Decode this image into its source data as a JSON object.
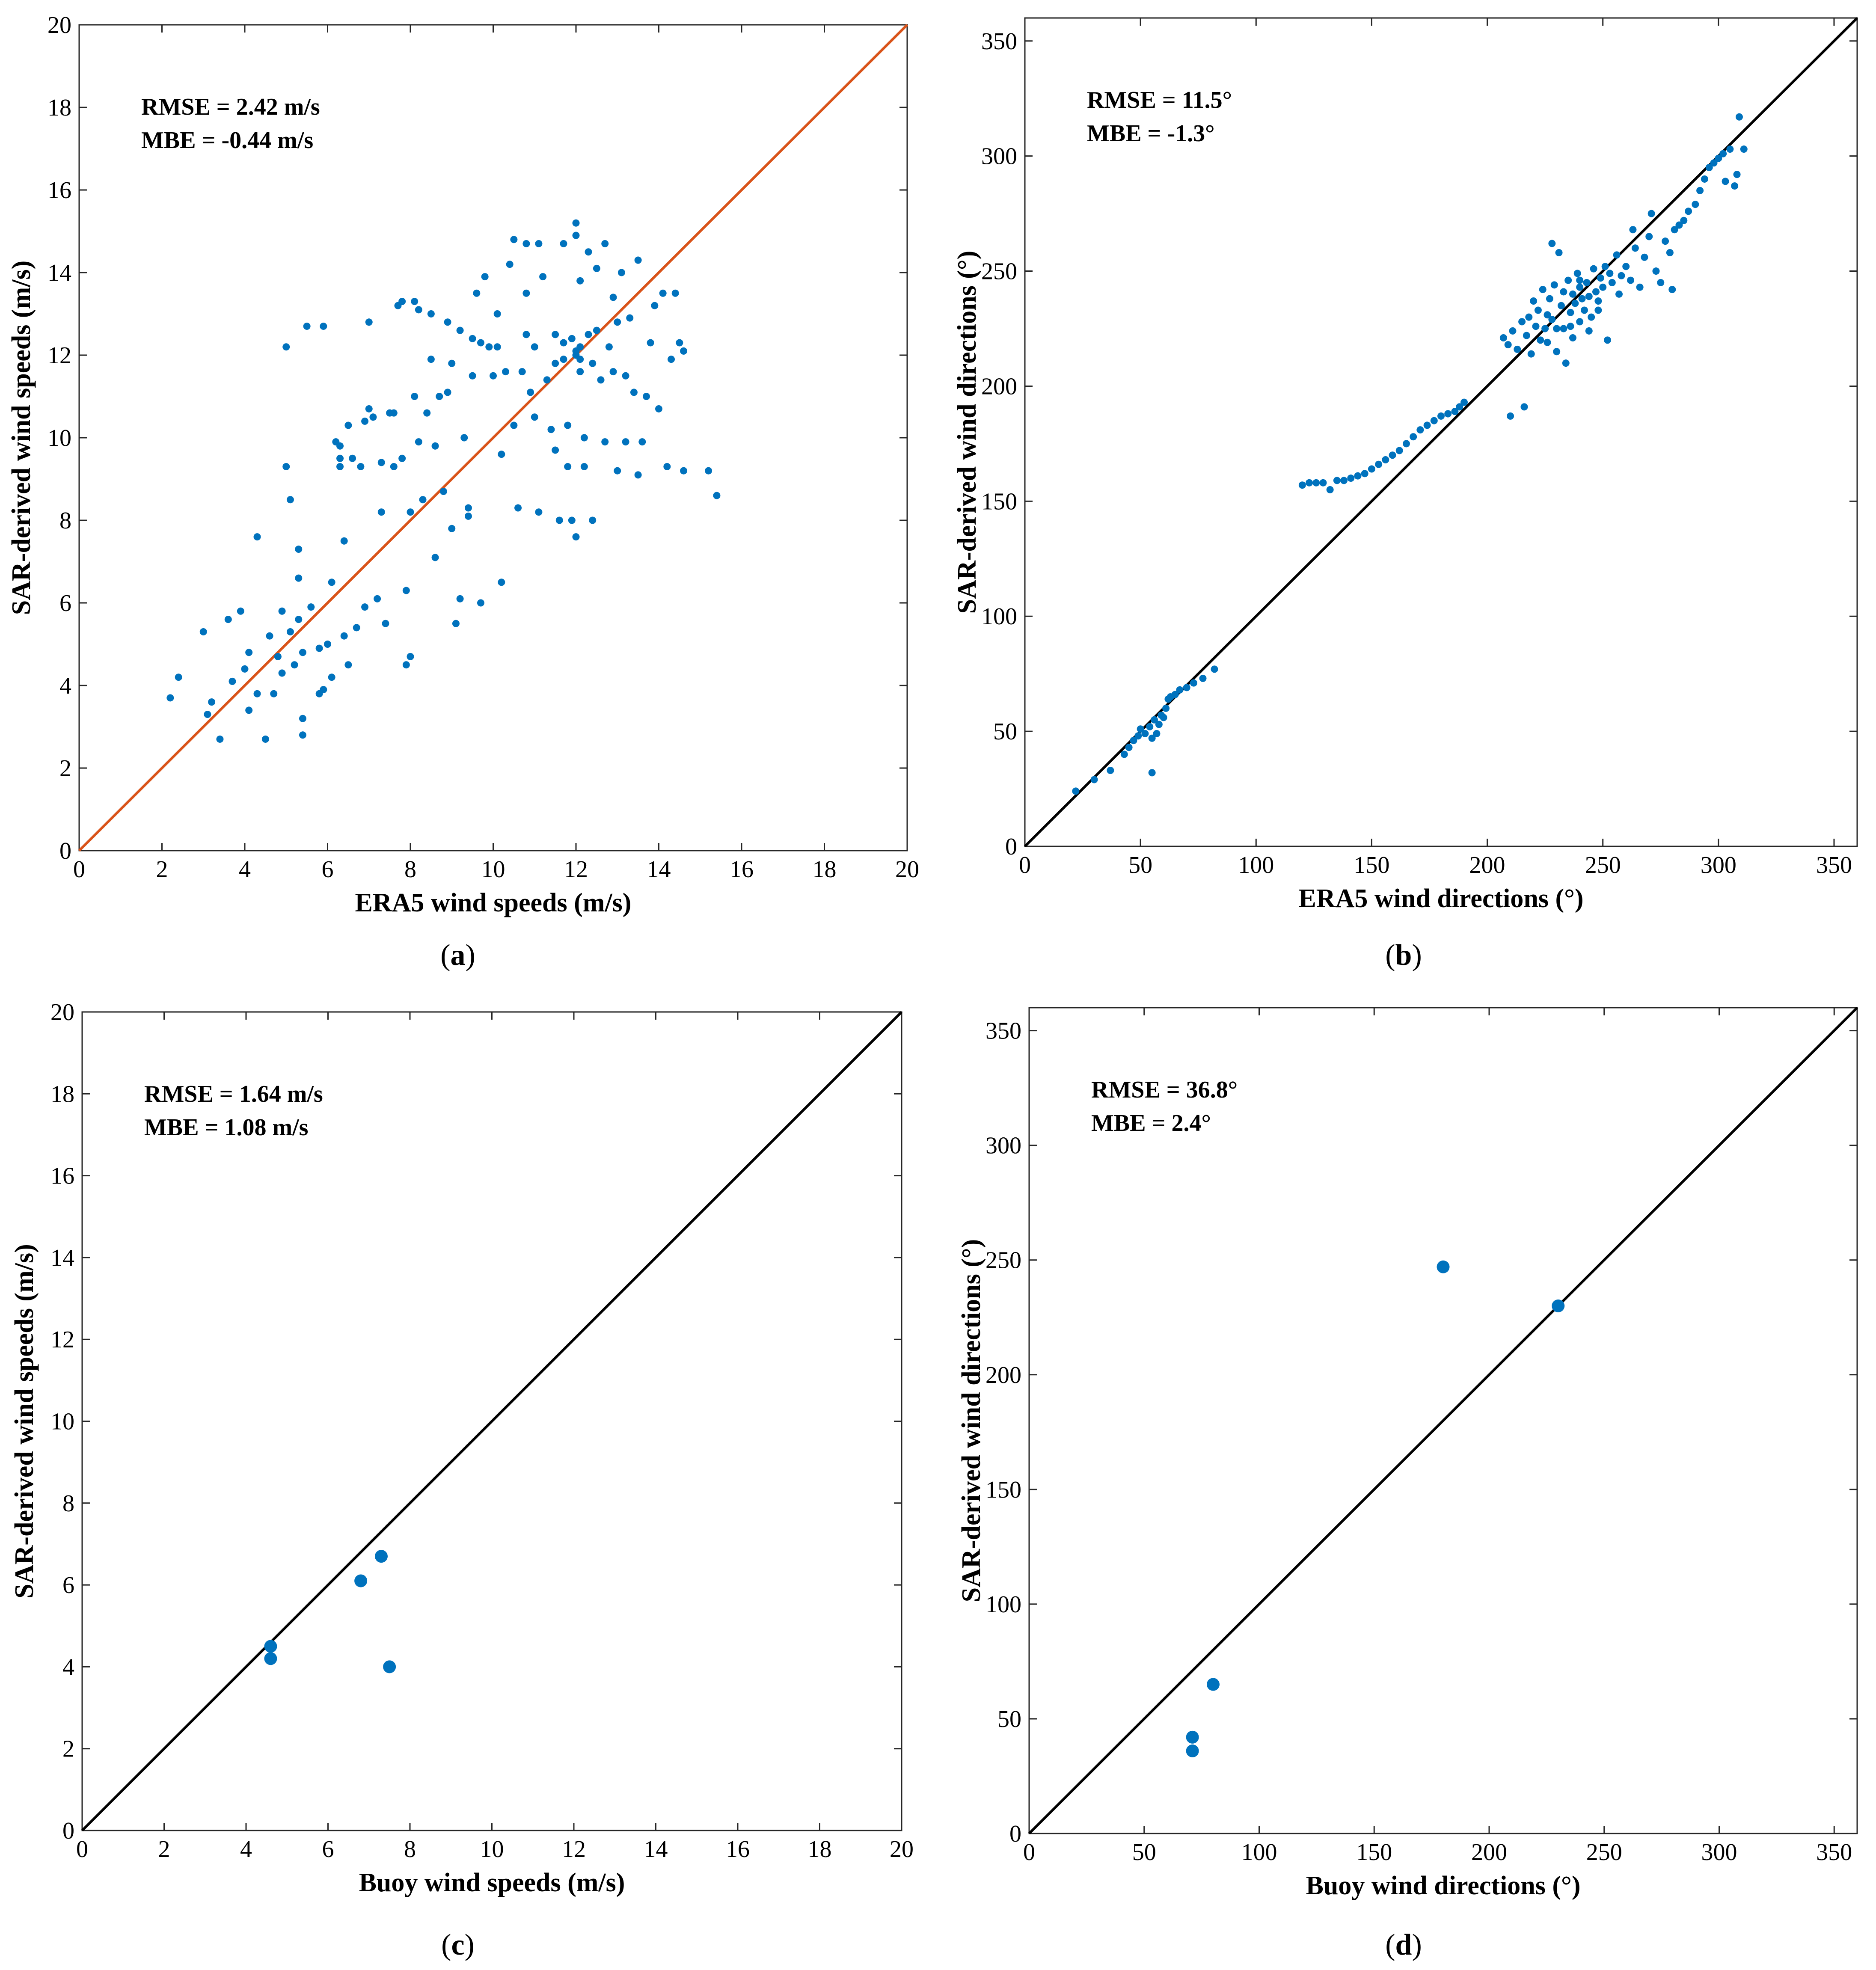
{
  "colors": {
    "marker": "#0072BD",
    "orange_line": "#D95319",
    "black_line": "#000000"
  },
  "chart_data": [
    {
      "id": "a",
      "type": "scatter",
      "caption_letter": "a",
      "caption_text": "(a)",
      "xlabel": "ERA5 wind speeds (m/s)",
      "ylabel": "SAR-derived wind speeds (m/s)",
      "xlim": [
        0,
        20
      ],
      "ylim": [
        0,
        20
      ],
      "xticks": [
        0,
        2,
        4,
        6,
        8,
        10,
        12,
        14,
        16,
        18,
        20
      ],
      "yticks": [
        0,
        2,
        4,
        6,
        8,
        10,
        12,
        14,
        16,
        18,
        20
      ],
      "stats": [
        "RMSE = 2.42 m/s",
        "MBE = -0.44 m/s"
      ],
      "reference_line": {
        "label": "1:1",
        "color_key": "orange_line"
      },
      "marker_size": "small",
      "points": [
        [
          2.2,
          3.7
        ],
        [
          2.4,
          4.2
        ],
        [
          3.0,
          5.3
        ],
        [
          3.2,
          3.6
        ],
        [
          3.1,
          3.3
        ],
        [
          3.4,
          2.7
        ],
        [
          3.6,
          5.6
        ],
        [
          3.9,
          5.8
        ],
        [
          3.7,
          4.1
        ],
        [
          4.0,
          4.4
        ],
        [
          4.1,
          4.8
        ],
        [
          4.1,
          3.4
        ],
        [
          4.3,
          3.8
        ],
        [
          4.3,
          7.6
        ],
        [
          4.5,
          2.7
        ],
        [
          4.6,
          5.2
        ],
        [
          4.7,
          3.8
        ],
        [
          4.8,
          4.7
        ],
        [
          4.9,
          5.8
        ],
        [
          4.9,
          4.3
        ],
        [
          5.0,
          9.3
        ],
        [
          5.1,
          8.5
        ],
        [
          5.0,
          12.2
        ],
        [
          5.1,
          5.3
        ],
        [
          5.2,
          4.5
        ],
        [
          5.3,
          6.6
        ],
        [
          5.3,
          7.3
        ],
        [
          5.3,
          5.6
        ],
        [
          5.4,
          4.8
        ],
        [
          5.4,
          3.2
        ],
        [
          5.4,
          2.8
        ],
        [
          5.5,
          12.7
        ],
        [
          5.6,
          5.9
        ],
        [
          5.8,
          4.9
        ],
        [
          5.8,
          3.8
        ],
        [
          5.9,
          12.7
        ],
        [
          5.9,
          3.9
        ],
        [
          6.0,
          5.0
        ],
        [
          6.1,
          6.5
        ],
        [
          6.1,
          4.2
        ],
        [
          6.2,
          9.9
        ],
        [
          6.3,
          9.8
        ],
        [
          6.3,
          9.5
        ],
        [
          6.3,
          9.3
        ],
        [
          6.4,
          7.5
        ],
        [
          6.4,
          5.2
        ],
        [
          6.5,
          4.5
        ],
        [
          6.5,
          10.3
        ],
        [
          6.6,
          9.5
        ],
        [
          6.7,
          5.4
        ],
        [
          6.8,
          9.3
        ],
        [
          6.9,
          5.9
        ],
        [
          6.9,
          10.4
        ],
        [
          7.0,
          10.7
        ],
        [
          7.0,
          12.8
        ],
        [
          7.1,
          10.5
        ],
        [
          7.2,
          6.1
        ],
        [
          7.3,
          9.4
        ],
        [
          7.3,
          8.2
        ],
        [
          7.4,
          5.5
        ],
        [
          7.5,
          10.6
        ],
        [
          7.6,
          9.3
        ],
        [
          7.6,
          10.6
        ],
        [
          7.7,
          13.2
        ],
        [
          7.8,
          13.3
        ],
        [
          7.8,
          9.5
        ],
        [
          7.9,
          4.5
        ],
        [
          7.9,
          6.3
        ],
        [
          8.0,
          8.2
        ],
        [
          8.0,
          4.7
        ],
        [
          8.1,
          13.3
        ],
        [
          8.1,
          11.0
        ],
        [
          8.2,
          13.1
        ],
        [
          8.2,
          9.9
        ],
        [
          8.3,
          8.5
        ],
        [
          8.4,
          10.6
        ],
        [
          8.5,
          13.0
        ],
        [
          8.5,
          11.9
        ],
        [
          8.6,
          9.8
        ],
        [
          8.6,
          7.1
        ],
        [
          8.7,
          11.0
        ],
        [
          8.8,
          8.7
        ],
        [
          8.9,
          12.8
        ],
        [
          8.9,
          11.1
        ],
        [
          9.0,
          11.8
        ],
        [
          9.0,
          7.8
        ],
        [
          9.1,
          5.5
        ],
        [
          9.2,
          12.6
        ],
        [
          9.2,
          6.1
        ],
        [
          9.3,
          10.0
        ],
        [
          9.4,
          8.3
        ],
        [
          9.4,
          8.1
        ],
        [
          9.5,
          12.4
        ],
        [
          9.5,
          11.5
        ],
        [
          9.6,
          13.5
        ],
        [
          9.7,
          12.3
        ],
        [
          9.7,
          6.0
        ],
        [
          9.8,
          13.9
        ],
        [
          9.9,
          12.2
        ],
        [
          10.0,
          11.5
        ],
        [
          10.1,
          13.0
        ],
        [
          10.1,
          12.2
        ],
        [
          10.2,
          9.6
        ],
        [
          10.2,
          6.5
        ],
        [
          10.3,
          11.6
        ],
        [
          10.4,
          14.2
        ],
        [
          10.5,
          14.8
        ],
        [
          10.5,
          10.3
        ],
        [
          10.6,
          8.3
        ],
        [
          10.7,
          11.6
        ],
        [
          10.8,
          14.7
        ],
        [
          10.8,
          13.5
        ],
        [
          10.8,
          12.5
        ],
        [
          10.9,
          11.1
        ],
        [
          11.0,
          12.2
        ],
        [
          11.0,
          10.5
        ],
        [
          11.1,
          14.7
        ],
        [
          11.1,
          8.2
        ],
        [
          11.2,
          13.9
        ],
        [
          11.3,
          11.4
        ],
        [
          11.4,
          10.2
        ],
        [
          11.5,
          12.5
        ],
        [
          11.5,
          9.7
        ],
        [
          11.6,
          8.0
        ],
        [
          11.7,
          14.7
        ],
        [
          11.7,
          12.3
        ],
        [
          11.7,
          11.9
        ],
        [
          11.8,
          10.3
        ],
        [
          11.8,
          9.3
        ],
        [
          11.9,
          8.0
        ],
        [
          12.0,
          15.2
        ],
        [
          12.0,
          14.9
        ],
        [
          12.0,
          12.0
        ],
        [
          12.0,
          7.6
        ],
        [
          12.1,
          13.8
        ],
        [
          12.1,
          12.2
        ],
        [
          12.1,
          11.6
        ],
        [
          12.2,
          10.0
        ],
        [
          12.2,
          9.3
        ],
        [
          12.3,
          14.5
        ],
        [
          12.3,
          12.5
        ],
        [
          12.4,
          11.8
        ],
        [
          12.4,
          8.0
        ],
        [
          12.5,
          14.1
        ],
        [
          12.5,
          12.6
        ],
        [
          12.6,
          11.4
        ],
        [
          12.7,
          14.7
        ],
        [
          12.7,
          9.9
        ],
        [
          12.8,
          12.2
        ],
        [
          12.9,
          13.4
        ],
        [
          12.9,
          11.6
        ],
        [
          13.0,
          12.8
        ],
        [
          13.0,
          9.2
        ],
        [
          13.1,
          14.0
        ],
        [
          13.2,
          11.5
        ],
        [
          13.2,
          9.9
        ],
        [
          13.3,
          12.9
        ],
        [
          13.4,
          11.1
        ],
        [
          13.5,
          14.3
        ],
        [
          13.5,
          9.1
        ],
        [
          13.6,
          9.9
        ],
        [
          13.7,
          11.0
        ],
        [
          13.8,
          12.3
        ],
        [
          13.9,
          13.2
        ],
        [
          14.0,
          10.7
        ],
        [
          14.1,
          13.5
        ],
        [
          14.2,
          9.3
        ],
        [
          14.3,
          11.9
        ],
        [
          14.4,
          13.5
        ],
        [
          14.5,
          12.3
        ],
        [
          14.6,
          12.1
        ],
        [
          14.6,
          9.2
        ],
        [
          15.2,
          9.2
        ],
        [
          15.4,
          8.6
        ],
        [
          12.0,
          12.1
        ],
        [
          11.5,
          11.8
        ],
        [
          11.9,
          12.4
        ],
        [
          12.1,
          11.9
        ]
      ]
    },
    {
      "id": "b",
      "type": "scatter",
      "caption_letter": "b",
      "caption_text": "(b)",
      "xlabel": "ERA5 wind directions (°)",
      "ylabel": "SAR-derived wind directions (°)",
      "xlim": [
        0,
        360
      ],
      "ylim": [
        0,
        360
      ],
      "xticks": [
        0,
        50,
        100,
        150,
        200,
        250,
        300,
        350
      ],
      "yticks": [
        0,
        50,
        100,
        150,
        200,
        250,
        300,
        350
      ],
      "stats": [
        "RMSE = 11.5°",
        "MBE = -1.3°"
      ],
      "reference_line": {
        "label": "1:1",
        "color_key": "black_line"
      },
      "marker_size": "small",
      "points": [
        [
          22,
          24
        ],
        [
          30,
          29
        ],
        [
          37,
          33
        ],
        [
          43,
          40
        ],
        [
          45,
          43
        ],
        [
          47,
          46
        ],
        [
          49,
          48
        ],
        [
          50,
          51
        ],
        [
          52,
          49
        ],
        [
          54,
          52
        ],
        [
          55,
          47
        ],
        [
          55,
          32
        ],
        [
          56,
          55
        ],
        [
          57,
          49
        ],
        [
          58,
          53
        ],
        [
          59,
          57
        ],
        [
          60,
          56
        ],
        [
          61,
          60
        ],
        [
          62,
          64
        ],
        [
          63,
          65
        ],
        [
          65,
          66
        ],
        [
          67,
          68
        ],
        [
          70,
          69
        ],
        [
          73,
          71
        ],
        [
          77,
          73
        ],
        [
          82,
          77
        ],
        [
          120,
          157
        ],
        [
          123,
          158
        ],
        [
          126,
          158
        ],
        [
          129,
          158
        ],
        [
          132,
          155
        ],
        [
          135,
          159
        ],
        [
          138,
          159
        ],
        [
          141,
          160
        ],
        [
          144,
          161
        ],
        [
          147,
          162
        ],
        [
          150,
          164
        ],
        [
          153,
          166
        ],
        [
          156,
          168
        ],
        [
          159,
          170
        ],
        [
          162,
          172
        ],
        [
          165,
          175
        ],
        [
          168,
          178
        ],
        [
          171,
          181
        ],
        [
          174,
          183
        ],
        [
          177,
          185
        ],
        [
          180,
          187
        ],
        [
          183,
          188
        ],
        [
          186,
          189
        ],
        [
          188,
          191
        ],
        [
          190,
          193
        ],
        [
          210,
          187
        ],
        [
          216,
          191
        ],
        [
          207,
          221
        ],
        [
          209,
          218
        ],
        [
          211,
          224
        ],
        [
          213,
          216
        ],
        [
          215,
          228
        ],
        [
          217,
          222
        ],
        [
          218,
          230
        ],
        [
          219,
          214
        ],
        [
          220,
          237
        ],
        [
          221,
          226
        ],
        [
          222,
          233
        ],
        [
          223,
          220
        ],
        [
          224,
          242
        ],
        [
          225,
          225
        ],
        [
          226,
          219
        ],
        [
          227,
          238
        ],
        [
          228,
          262
        ],
        [
          228,
          229
        ],
        [
          229,
          244
        ],
        [
          230,
          215
        ],
        [
          231,
          258
        ],
        [
          232,
          235
        ],
        [
          233,
          241
        ],
        [
          233,
          225
        ],
        [
          234,
          210
        ],
        [
          235,
          246
        ],
        [
          236,
          232
        ],
        [
          237,
          240
        ],
        [
          237,
          221
        ],
        [
          238,
          236
        ],
        [
          239,
          249
        ],
        [
          240,
          243
        ],
        [
          240,
          228
        ],
        [
          241,
          238
        ],
        [
          242,
          233
        ],
        [
          243,
          245
        ],
        [
          244,
          239
        ],
        [
          245,
          230
        ],
        [
          246,
          251
        ],
        [
          247,
          241
        ],
        [
          248,
          237
        ],
        [
          249,
          247
        ],
        [
          250,
          243
        ],
        [
          251,
          252
        ],
        [
          252,
          220
        ],
        [
          253,
          249
        ],
        [
          254,
          245
        ],
        [
          256,
          257
        ],
        [
          257,
          240
        ],
        [
          258,
          248
        ],
        [
          260,
          252
        ],
        [
          262,
          246
        ],
        [
          264,
          260
        ],
        [
          266,
          243
        ],
        [
          268,
          256
        ],
        [
          270,
          265
        ],
        [
          271,
          275
        ],
        [
          273,
          250
        ],
        [
          275,
          245
        ],
        [
          277,
          263
        ],
        [
          279,
          258
        ],
        [
          280,
          242
        ],
        [
          281,
          268
        ],
        [
          283,
          270
        ],
        [
          285,
          272
        ],
        [
          287,
          276
        ],
        [
          290,
          279
        ],
        [
          292,
          285
        ],
        [
          294,
          290
        ],
        [
          296,
          295
        ],
        [
          298,
          297
        ],
        [
          300,
          299
        ],
        [
          302,
          301
        ],
        [
          303,
          289
        ],
        [
          305,
          303
        ],
        [
          307,
          287
        ],
        [
          308,
          292
        ],
        [
          309,
          317
        ],
        [
          311,
          303
        ],
        [
          263,
          268
        ],
        [
          244,
          224
        ],
        [
          236,
          226
        ],
        [
          230,
          225
        ],
        [
          226,
          231
        ],
        [
          240,
          246
        ],
        [
          248,
          233
        ]
      ]
    },
    {
      "id": "c",
      "type": "scatter",
      "caption_letter": "c",
      "caption_text": "(c)",
      "xlabel": "Buoy wind speeds (m/s)",
      "ylabel": "SAR-derived wind speeds (m/s)",
      "xlim": [
        0,
        20
      ],
      "ylim": [
        0,
        20
      ],
      "xticks": [
        0,
        2,
        4,
        6,
        8,
        10,
        12,
        14,
        16,
        18,
        20
      ],
      "yticks": [
        0,
        2,
        4,
        6,
        8,
        10,
        12,
        14,
        16,
        18,
        20
      ],
      "stats": [
        "RMSE = 1.64 m/s",
        "MBE = 1.08 m/s"
      ],
      "reference_line": {
        "label": "1:1",
        "color_key": "black_line"
      },
      "marker_size": "large",
      "points": [
        [
          4.6,
          4.5
        ],
        [
          4.6,
          4.2
        ],
        [
          6.8,
          6.1
        ],
        [
          7.3,
          6.7
        ],
        [
          7.5,
          4.0
        ]
      ]
    },
    {
      "id": "d",
      "type": "scatter",
      "caption_letter": "d",
      "caption_text": "(d)",
      "xlabel": "Buoy wind directions (°)",
      "ylabel": "SAR-derived wind directions (°)",
      "xlim": [
        0,
        360
      ],
      "ylim": [
        0,
        360
      ],
      "xticks": [
        0,
        50,
        100,
        150,
        200,
        250,
        300,
        350
      ],
      "yticks": [
        0,
        50,
        100,
        150,
        200,
        250,
        300,
        350
      ],
      "stats": [
        "RMSE = 36.8°",
        "MBE = 2.4°"
      ],
      "reference_line": {
        "label": "1:1",
        "color_key": "black_line"
      },
      "marker_size": "large",
      "points": [
        [
          71,
          42
        ],
        [
          71,
          36
        ],
        [
          80,
          65
        ],
        [
          180,
          247
        ],
        [
          230,
          230
        ]
      ]
    }
  ]
}
